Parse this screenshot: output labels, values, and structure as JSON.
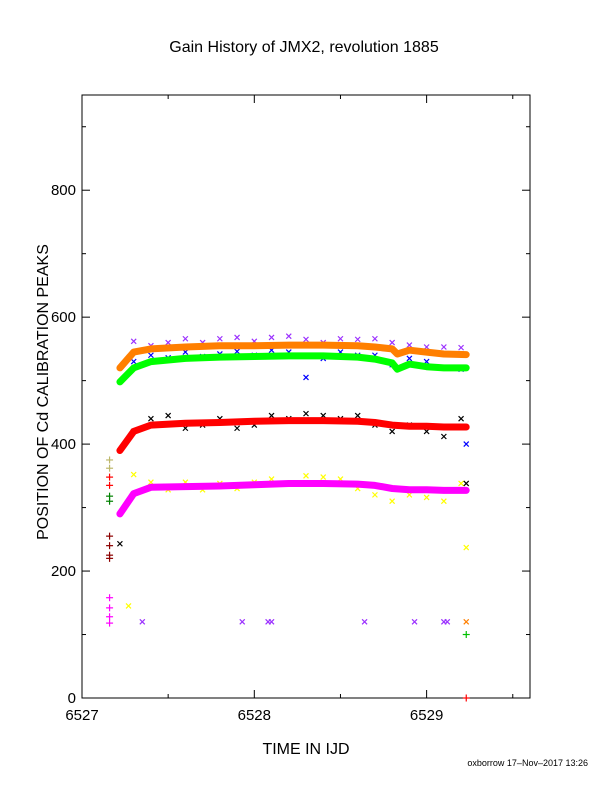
{
  "chart_data": {
    "type": "scatter",
    "title": "Gain History of JMX2, revolution 1885",
    "xlabel": "TIME IN IJD",
    "ylabel": "POSITION OF Cd CALIBRATION PEAKS",
    "xlim": [
      6527.0,
      6529.6
    ],
    "ylim": [
      0,
      950
    ],
    "xticks": [
      6527,
      6528,
      6529
    ],
    "yticks": [
      0,
      200,
      400,
      600,
      800
    ],
    "grid": false,
    "legend": "none",
    "series": [
      {
        "color": "#9b30ff",
        "marker": "x",
        "points": [
          [
            6527.3,
            562
          ],
          [
            6527.4,
            555
          ],
          [
            6527.5,
            560
          ],
          [
            6527.6,
            566
          ],
          [
            6527.7,
            560
          ],
          [
            6527.8,
            566
          ],
          [
            6527.9,
            568
          ],
          [
            6528.0,
            562
          ],
          [
            6528.1,
            568
          ],
          [
            6528.2,
            570
          ],
          [
            6528.3,
            565
          ],
          [
            6528.4,
            560
          ],
          [
            6528.5,
            566
          ],
          [
            6528.6,
            565
          ],
          [
            6528.7,
            566
          ],
          [
            6528.8,
            560
          ],
          [
            6528.9,
            556
          ],
          [
            6529.0,
            553
          ],
          [
            6529.1,
            553
          ],
          [
            6529.2,
            552
          ]
        ]
      },
      {
        "color": "#0000ff",
        "marker": "x",
        "points": [
          [
            6527.3,
            530
          ],
          [
            6527.4,
            540
          ],
          [
            6527.5,
            536
          ],
          [
            6527.6,
            545
          ],
          [
            6527.7,
            538
          ],
          [
            6527.8,
            542
          ],
          [
            6527.9,
            546
          ],
          [
            6528.0,
            540
          ],
          [
            6528.1,
            548
          ],
          [
            6528.2,
            545
          ],
          [
            6528.3,
            505
          ],
          [
            6528.4,
            535
          ],
          [
            6528.5,
            545
          ],
          [
            6528.6,
            540
          ],
          [
            6528.7,
            540
          ],
          [
            6528.8,
            525
          ],
          [
            6528.9,
            535
          ],
          [
            6529.0,
            530
          ],
          [
            6529.1,
            520
          ],
          [
            6529.2,
            518
          ]
        ]
      },
      {
        "color": "#000000",
        "marker": "x",
        "points": [
          [
            6527.3,
            420
          ],
          [
            6527.4,
            440
          ],
          [
            6527.5,
            445
          ],
          [
            6527.6,
            425
          ],
          [
            6527.7,
            430
          ],
          [
            6527.8,
            440
          ],
          [
            6527.9,
            425
          ],
          [
            6528.0,
            430
          ],
          [
            6528.1,
            445
          ],
          [
            6528.2,
            440
          ],
          [
            6528.3,
            448
          ],
          [
            6528.4,
            445
          ],
          [
            6528.5,
            440
          ],
          [
            6528.6,
            445
          ],
          [
            6528.7,
            430
          ],
          [
            6528.8,
            420
          ],
          [
            6528.9,
            430
          ],
          [
            6529.0,
            420
          ],
          [
            6529.1,
            412
          ],
          [
            6529.2,
            440
          ]
        ]
      },
      {
        "color": "#ffff00",
        "marker": "x",
        "points": [
          [
            6527.3,
            352
          ],
          [
            6527.4,
            340
          ],
          [
            6527.5,
            328
          ],
          [
            6527.6,
            340
          ],
          [
            6527.7,
            328
          ],
          [
            6527.8,
            338
          ],
          [
            6527.9,
            330
          ],
          [
            6528.0,
            340
          ],
          [
            6528.1,
            345
          ],
          [
            6528.2,
            338
          ],
          [
            6528.3,
            350
          ],
          [
            6528.4,
            348
          ],
          [
            6528.5,
            345
          ],
          [
            6528.6,
            330
          ],
          [
            6528.7,
            320
          ],
          [
            6528.8,
            310
          ],
          [
            6528.9,
            320
          ],
          [
            6529.0,
            316
          ],
          [
            6529.1,
            310
          ],
          [
            6529.2,
            338
          ]
        ]
      },
      {
        "color": "#ff7f00",
        "marker": "line",
        "points": [
          [
            6527.22,
            520
          ],
          [
            6527.3,
            545
          ],
          [
            6527.4,
            550
          ],
          [
            6527.6,
            553
          ],
          [
            6527.8,
            555
          ],
          [
            6528.0,
            555
          ],
          [
            6528.2,
            556
          ],
          [
            6528.4,
            556
          ],
          [
            6528.6,
            555
          ],
          [
            6528.7,
            553
          ],
          [
            6528.8,
            550
          ],
          [
            6528.83,
            542
          ],
          [
            6528.9,
            548
          ],
          [
            6529.0,
            545
          ],
          [
            6529.1,
            542
          ],
          [
            6529.23,
            541
          ]
        ]
      },
      {
        "color": "#00ff00",
        "marker": "line",
        "points": [
          [
            6527.22,
            498
          ],
          [
            6527.3,
            520
          ],
          [
            6527.4,
            530
          ],
          [
            6527.6,
            535
          ],
          [
            6527.8,
            537
          ],
          [
            6528.0,
            538
          ],
          [
            6528.2,
            539
          ],
          [
            6528.4,
            539
          ],
          [
            6528.6,
            537
          ],
          [
            6528.7,
            534
          ],
          [
            6528.8,
            528
          ],
          [
            6528.83,
            518
          ],
          [
            6528.9,
            526
          ],
          [
            6529.0,
            522
          ],
          [
            6529.1,
            520
          ],
          [
            6529.23,
            520
          ]
        ]
      },
      {
        "color": "#ff0000",
        "marker": "line",
        "points": [
          [
            6527.22,
            390
          ],
          [
            6527.3,
            420
          ],
          [
            6527.4,
            430
          ],
          [
            6527.6,
            433
          ],
          [
            6527.8,
            434
          ],
          [
            6528.0,
            436
          ],
          [
            6528.2,
            437
          ],
          [
            6528.4,
            437
          ],
          [
            6528.6,
            436
          ],
          [
            6528.7,
            434
          ],
          [
            6528.8,
            430
          ],
          [
            6528.9,
            428
          ],
          [
            6529.0,
            428
          ],
          [
            6529.1,
            427
          ],
          [
            6529.23,
            427
          ]
        ]
      },
      {
        "color": "#ff00ff",
        "marker": "line",
        "points": [
          [
            6527.22,
            290
          ],
          [
            6527.3,
            322
          ],
          [
            6527.4,
            332
          ],
          [
            6527.6,
            333
          ],
          [
            6527.8,
            334
          ],
          [
            6528.0,
            336
          ],
          [
            6528.2,
            338
          ],
          [
            6528.4,
            338
          ],
          [
            6528.6,
            337
          ],
          [
            6528.7,
            335
          ],
          [
            6528.8,
            330
          ],
          [
            6528.9,
            328
          ],
          [
            6529.0,
            328
          ],
          [
            6529.1,
            327
          ],
          [
            6529.23,
            327
          ]
        ]
      },
      {
        "color": "#8b0000",
        "marker": "+",
        "points": [
          [
            6527.16,
            255
          ],
          [
            6527.16,
            240
          ],
          [
            6527.16,
            225
          ],
          [
            6527.16,
            220
          ]
        ]
      },
      {
        "color": "#ff0000",
        "marker": "+",
        "points": [
          [
            6527.16,
            348
          ],
          [
            6527.16,
            335
          ],
          [
            6529.23,
            0
          ]
        ]
      },
      {
        "color": "#bdb76b",
        "marker": "+",
        "points": [
          [
            6527.16,
            375
          ],
          [
            6527.16,
            362
          ]
        ]
      },
      {
        "color": "#008000",
        "marker": "+",
        "points": [
          [
            6527.16,
            318
          ],
          [
            6527.16,
            310
          ]
        ]
      },
      {
        "color": "#ff00ff",
        "marker": "+",
        "points": [
          [
            6527.16,
            158
          ],
          [
            6527.16,
            142
          ],
          [
            6527.16,
            128
          ],
          [
            6527.16,
            118
          ]
        ]
      },
      {
        "color": "#9b30ff",
        "marker": "x",
        "points": [
          [
            6527.35,
            120
          ],
          [
            6527.93,
            120
          ],
          [
            6528.08,
            120
          ],
          [
            6528.1,
            120
          ],
          [
            6528.64,
            120
          ],
          [
            6528.93,
            120
          ],
          [
            6529.1,
            120
          ],
          [
            6529.12,
            120
          ]
        ]
      },
      {
        "color": "#ff7f00",
        "marker": "x",
        "points": [
          [
            6529.23,
            120
          ]
        ]
      },
      {
        "color": "#00c000",
        "marker": "+",
        "points": [
          [
            6529.23,
            100
          ]
        ]
      },
      {
        "color": "#ffff00",
        "marker": "x",
        "points": [
          [
            6527.27,
            145
          ],
          [
            6529.23,
            237
          ]
        ]
      },
      {
        "color": "#000000",
        "marker": "x",
        "points": [
          [
            6527.22,
            243
          ],
          [
            6529.23,
            338
          ]
        ]
      },
      {
        "color": "#0000ff",
        "marker": "x",
        "points": [
          [
            6529.23,
            400
          ]
        ]
      }
    ]
  },
  "footer": "oxborrow 17–Nov–2017 13:26"
}
